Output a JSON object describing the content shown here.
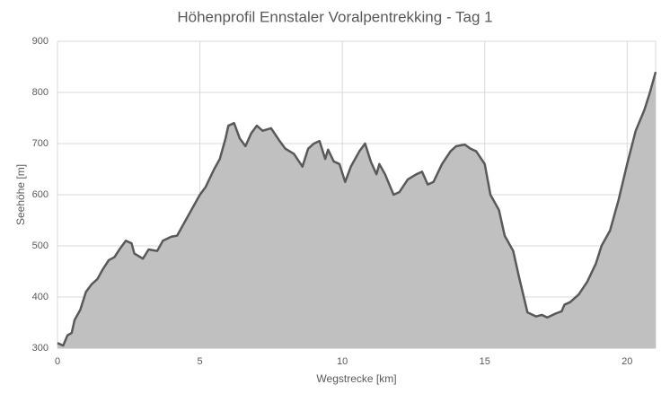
{
  "chart_data": {
    "type": "area",
    "title": "Höhenprofil Ennstaler Voralpentrekking - Tag 1",
    "x_label": "Wegstrecke [km]",
    "y_label": "Seehöhe [m]",
    "x": [
      0.0,
      0.2,
      0.35,
      0.5,
      0.6,
      0.8,
      1.0,
      1.2,
      1.4,
      1.6,
      1.8,
      2.0,
      2.2,
      2.4,
      2.6,
      2.7,
      3.0,
      3.2,
      3.5,
      3.7,
      4.0,
      4.2,
      4.5,
      4.8,
      5.0,
      5.2,
      5.5,
      5.7,
      5.9,
      6.0,
      6.2,
      6.4,
      6.6,
      6.8,
      7.0,
      7.2,
      7.5,
      7.8,
      8.0,
      8.3,
      8.6,
      8.8,
      9.0,
      9.2,
      9.4,
      9.5,
      9.7,
      9.9,
      10.1,
      10.3,
      10.6,
      10.8,
      11.0,
      11.2,
      11.3,
      11.5,
      11.8,
      12.0,
      12.3,
      12.6,
      12.8,
      13.0,
      13.2,
      13.5,
      13.8,
      14.0,
      14.3,
      14.5,
      14.7,
      15.0,
      15.2,
      15.5,
      15.7,
      16.0,
      16.2,
      16.5,
      16.8,
      17.0,
      17.2,
      17.5,
      17.7,
      17.8,
      18.0,
      18.3,
      18.6,
      18.9,
      19.1,
      19.4,
      19.7,
      20.0,
      20.3,
      20.6,
      20.8,
      21.0
    ],
    "values": [
      310,
      305,
      325,
      330,
      355,
      375,
      410,
      425,
      435,
      455,
      472,
      478,
      495,
      510,
      505,
      485,
      475,
      493,
      490,
      510,
      518,
      520,
      550,
      580,
      600,
      615,
      650,
      670,
      710,
      735,
      740,
      710,
      695,
      720,
      735,
      725,
      730,
      705,
      690,
      680,
      655,
      690,
      700,
      705,
      670,
      688,
      665,
      660,
      625,
      655,
      685,
      700,
      665,
      640,
      660,
      640,
      600,
      605,
      630,
      640,
      645,
      620,
      625,
      660,
      685,
      695,
      698,
      690,
      685,
      660,
      600,
      570,
      520,
      490,
      440,
      370,
      362,
      365,
      360,
      368,
      372,
      385,
      390,
      405,
      430,
      465,
      500,
      530,
      590,
      660,
      725,
      765,
      800,
      840
    ],
    "fill_color": "#c0c0c0",
    "line_color": "#595959",
    "xlim": [
      0,
      21
    ],
    "xticks": [
      0,
      5,
      10,
      15,
      20
    ],
    "ylim": [
      300,
      900
    ],
    "yticks": [
      300,
      400,
      500,
      600,
      700,
      800,
      900
    ],
    "grid": true
  }
}
